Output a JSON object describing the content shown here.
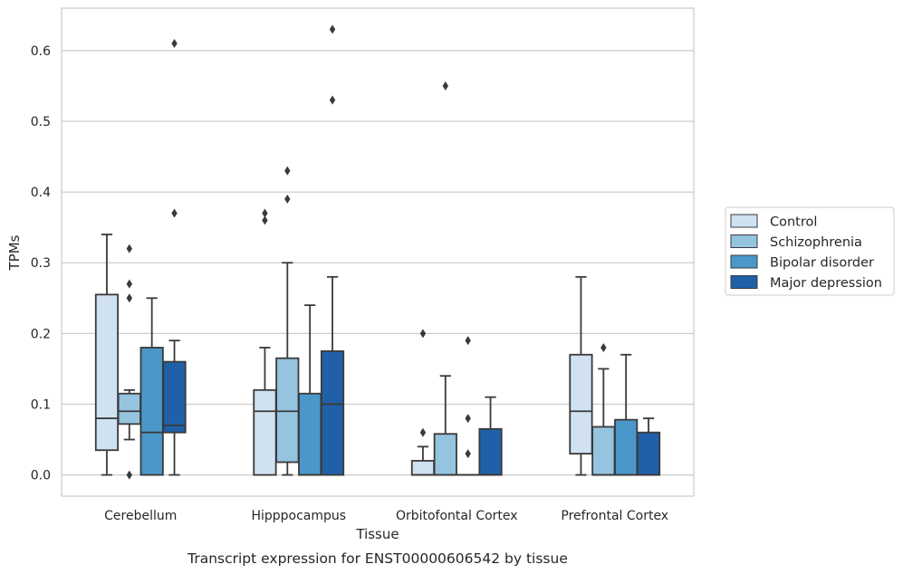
{
  "caption": "Transcript expression for ENST00000606542 by tissue",
  "chart_data": {
    "type": "box",
    "xlabel": "Tissue",
    "ylabel": "TPMs",
    "ylim": [
      -0.03,
      0.66
    ],
    "yticks": [
      0.0,
      0.1,
      0.2,
      0.3,
      0.4,
      0.5,
      0.6
    ],
    "ytick_labels": [
      "0.0",
      "0.1",
      "0.2",
      "0.3",
      "0.4",
      "0.5",
      "0.6"
    ],
    "grid": "horizontal",
    "legend_position": "right",
    "categories": [
      "Cerebellum",
      "Hipppocampus",
      "Orbitofontal Cortex",
      "Prefrontal Cortex"
    ],
    "series": [
      {
        "name": "Control",
        "color": "#d0e1f2",
        "boxes": [
          {
            "whislo": 0.0,
            "q1": 0.035,
            "med": 0.08,
            "q3": 0.255,
            "whishi": 0.34,
            "fliers": []
          },
          {
            "whislo": 0.0,
            "q1": 0.0,
            "med": 0.09,
            "q3": 0.12,
            "whishi": 0.18,
            "fliers": [
              0.36,
              0.37
            ]
          },
          {
            "whislo": 0.0,
            "q1": 0.0,
            "med": 0.0,
            "q3": 0.02,
            "whishi": 0.04,
            "fliers": [
              0.06,
              0.2
            ]
          },
          {
            "whislo": 0.0,
            "q1": 0.03,
            "med": 0.09,
            "q3": 0.17,
            "whishi": 0.28,
            "fliers": []
          }
        ]
      },
      {
        "name": "Schizophrenia",
        "color": "#94c4df",
        "boxes": [
          {
            "whislo": 0.05,
            "q1": 0.072,
            "med": 0.09,
            "q3": 0.115,
            "whishi": 0.12,
            "fliers": [
              0.0,
              0.25,
              0.27,
              0.32
            ]
          },
          {
            "whislo": 0.0,
            "q1": 0.018,
            "med": 0.09,
            "q3": 0.165,
            "whishi": 0.3,
            "fliers": [
              0.39,
              0.43
            ]
          },
          {
            "whislo": 0.0,
            "q1": 0.0,
            "med": 0.0,
            "q3": 0.058,
            "whishi": 0.14,
            "fliers": [
              0.55
            ]
          },
          {
            "whislo": 0.0,
            "q1": 0.0,
            "med": 0.0,
            "q3": 0.068,
            "whishi": 0.15,
            "fliers": [
              0.18
            ]
          }
        ]
      },
      {
        "name": "Bipolar disorder",
        "color": "#4a98c9",
        "boxes": [
          {
            "whislo": 0.0,
            "q1": 0.0,
            "med": 0.06,
            "q3": 0.18,
            "whishi": 0.25,
            "fliers": []
          },
          {
            "whislo": 0.0,
            "q1": 0.0,
            "med": 0.0,
            "q3": 0.115,
            "whishi": 0.24,
            "fliers": []
          },
          {
            "whislo": 0.0,
            "q1": 0.0,
            "med": 0.0,
            "q3": 0.0,
            "whishi": 0.0,
            "fliers": [
              0.03,
              0.08,
              0.19
            ]
          },
          {
            "whislo": 0.0,
            "q1": 0.0,
            "med": 0.0,
            "q3": 0.078,
            "whishi": 0.17,
            "fliers": []
          }
        ]
      },
      {
        "name": "Major depression",
        "color": "#2060a8",
        "boxes": [
          {
            "whislo": 0.0,
            "q1": 0.06,
            "med": 0.07,
            "q3": 0.16,
            "whishi": 0.19,
            "fliers": [
              0.37,
              0.61
            ]
          },
          {
            "whislo": 0.0,
            "q1": 0.0,
            "med": 0.1,
            "q3": 0.175,
            "whishi": 0.28,
            "fliers": [
              0.53,
              0.63
            ]
          },
          {
            "whislo": 0.0,
            "q1": 0.0,
            "med": 0.0,
            "q3": 0.065,
            "whishi": 0.11,
            "fliers": []
          },
          {
            "whislo": 0.0,
            "q1": 0.0,
            "med": 0.0,
            "q3": 0.06,
            "whishi": 0.08,
            "fliers": []
          }
        ]
      }
    ]
  }
}
